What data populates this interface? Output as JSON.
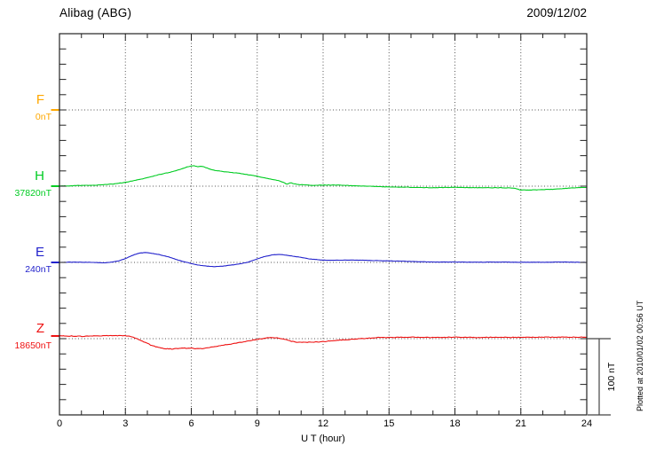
{
  "header": {
    "station": "Alibag (ABG)",
    "date": "2009/12/02"
  },
  "footer": {
    "plotted_at": "Plotted at 2010/01/02 00:56 UT"
  },
  "chart_data": {
    "type": "line",
    "title": "Alibag (ABG)",
    "subtitle": "2009/12/02",
    "xlabel": "U T (hour)",
    "x_range": [
      0,
      24
    ],
    "x_ticks": [
      "0",
      "3",
      "6",
      "9",
      "12",
      "15",
      "18",
      "21",
      "24"
    ],
    "x_gridline_hours": [
      3,
      6,
      9,
      12,
      15,
      18,
      21
    ],
    "y_minor_tick_nT": 20,
    "grid": "dotted vertical every 3h, dotted horizontal at each component baseline",
    "legend_position": "left margin, one label per trace baseline",
    "scale_bar": {
      "label": "100 nT",
      "nT": 100
    },
    "series": [
      {
        "name": "F",
        "base_value_label": "0nT",
        "color": "#FFA800",
        "points": []
      },
      {
        "name": "H",
        "base_value_label": "37820nT",
        "color": "#00CC22",
        "points": [
          [
            0,
            0
          ],
          [
            0.5,
            0.5
          ],
          [
            1,
            1
          ],
          [
            1.5,
            1
          ],
          [
            2,
            2
          ],
          [
            2.5,
            3
          ],
          [
            3,
            5
          ],
          [
            3.5,
            8
          ],
          [
            4,
            11
          ],
          [
            4.5,
            15
          ],
          [
            5,
            18
          ],
          [
            5.5,
            22
          ],
          [
            5.8,
            25
          ],
          [
            6.1,
            27
          ],
          [
            6.3,
            25.5
          ],
          [
            6.5,
            26
          ],
          [
            6.8,
            23
          ],
          [
            7,
            21
          ],
          [
            7.5,
            19
          ],
          [
            8,
            17.5
          ],
          [
            8.5,
            15.5
          ],
          [
            9,
            13
          ],
          [
            9.5,
            10
          ],
          [
            10,
            7
          ],
          [
            10.2,
            5
          ],
          [
            10.35,
            2.5
          ],
          [
            10.5,
            4.5
          ],
          [
            10.8,
            2.5
          ],
          [
            11,
            2
          ],
          [
            11.5,
            1
          ],
          [
            12,
            1.5
          ],
          [
            12.5,
            1.5
          ],
          [
            13,
            1
          ],
          [
            13.5,
            0.5
          ],
          [
            14,
            0
          ],
          [
            15,
            -1
          ],
          [
            16,
            -1.5
          ],
          [
            17,
            -2
          ],
          [
            18,
            -1.5
          ],
          [
            19,
            -2
          ],
          [
            20,
            -2
          ],
          [
            20.7,
            -2.5
          ],
          [
            21,
            -5
          ],
          [
            21.4,
            -5
          ],
          [
            22,
            -4.5
          ],
          [
            22.5,
            -4
          ],
          [
            23,
            -3
          ],
          [
            23.5,
            -2
          ],
          [
            24,
            -1.5
          ]
        ]
      },
      {
        "name": "E",
        "base_value_label": "240nT",
        "color": "#2222CC",
        "points": [
          [
            0,
            0
          ],
          [
            0.5,
            0.3
          ],
          [
            1,
            0.3
          ],
          [
            1.5,
            0
          ],
          [
            2,
            -0.5
          ],
          [
            2.3,
            0
          ],
          [
            2.7,
            2
          ],
          [
            3,
            5
          ],
          [
            3.3,
            9
          ],
          [
            3.6,
            12
          ],
          [
            3.9,
            13
          ],
          [
            4.2,
            12
          ],
          [
            4.5,
            10.5
          ],
          [
            5,
            7
          ],
          [
            5.4,
            3
          ],
          [
            5.8,
            0
          ],
          [
            6.2,
            -3
          ],
          [
            6.6,
            -4.5
          ],
          [
            7,
            -5.5
          ],
          [
            7.4,
            -5
          ],
          [
            7.8,
            -3.5
          ],
          [
            8.2,
            -2
          ],
          [
            8.6,
            0.5
          ],
          [
            9,
            4.5
          ],
          [
            9.3,
            7.5
          ],
          [
            9.7,
            10
          ],
          [
            10,
            10.5
          ],
          [
            10.3,
            9.5
          ],
          [
            10.7,
            8
          ],
          [
            11,
            6.5
          ],
          [
            11.4,
            4.5
          ],
          [
            11.8,
            3.5
          ],
          [
            12,
            3
          ],
          [
            12.5,
            2.8
          ],
          [
            13,
            3
          ],
          [
            13.5,
            3
          ],
          [
            14,
            2.8
          ],
          [
            14.5,
            2.3
          ],
          [
            15,
            2
          ],
          [
            15.5,
            1.8
          ],
          [
            16,
            1.2
          ],
          [
            16.5,
            0.8
          ],
          [
            17,
            0.5
          ],
          [
            18,
            0.5
          ],
          [
            19,
            0.2
          ],
          [
            20,
            0.5
          ],
          [
            21,
            0.2
          ],
          [
            22,
            0.3
          ],
          [
            23,
            0.5
          ],
          [
            24,
            0
          ]
        ]
      },
      {
        "name": "Z",
        "base_value_label": "18650nT",
        "color": "#EE1111",
        "points": [
          [
            0,
            3.5
          ],
          [
            0.5,
            3.5
          ],
          [
            1,
            3
          ],
          [
            1.5,
            3.5
          ],
          [
            2,
            4
          ],
          [
            2.5,
            4
          ],
          [
            3,
            4
          ],
          [
            3.3,
            2.5
          ],
          [
            3.6,
            -1
          ],
          [
            3.9,
            -5
          ],
          [
            4.2,
            -9
          ],
          [
            4.5,
            -11.5
          ],
          [
            4.8,
            -13
          ],
          [
            5.1,
            -13.5
          ],
          [
            5.4,
            -13
          ],
          [
            5.7,
            -12.5
          ],
          [
            6,
            -12.5
          ],
          [
            6.2,
            -13
          ],
          [
            6.5,
            -13
          ],
          [
            6.8,
            -11.5
          ],
          [
            7.1,
            -10
          ],
          [
            7.5,
            -8.5
          ],
          [
            8,
            -6
          ],
          [
            8.5,
            -3.5
          ],
          [
            9,
            -1
          ],
          [
            9.3,
            0.5
          ],
          [
            9.6,
            1.5
          ],
          [
            9.9,
            1
          ],
          [
            10.2,
            -0.5
          ],
          [
            10.5,
            -3
          ],
          [
            10.8,
            -4.5
          ],
          [
            11.2,
            -5
          ],
          [
            11.6,
            -4.5
          ],
          [
            12,
            -4
          ],
          [
            12.5,
            -2.5
          ],
          [
            13,
            -1.5
          ],
          [
            13.5,
            -0.5
          ],
          [
            14,
            0.5
          ],
          [
            14.5,
            1.5
          ],
          [
            15,
            1.5
          ],
          [
            16,
            2
          ],
          [
            17,
            1.5
          ],
          [
            18,
            2
          ],
          [
            19,
            1.5
          ],
          [
            20,
            2
          ],
          [
            21,
            1.5
          ],
          [
            22,
            2
          ],
          [
            23,
            2
          ],
          [
            24,
            2
          ]
        ]
      }
    ],
    "units_note": "points are [UT hour, offset in nT from the printed baseline value]"
  }
}
